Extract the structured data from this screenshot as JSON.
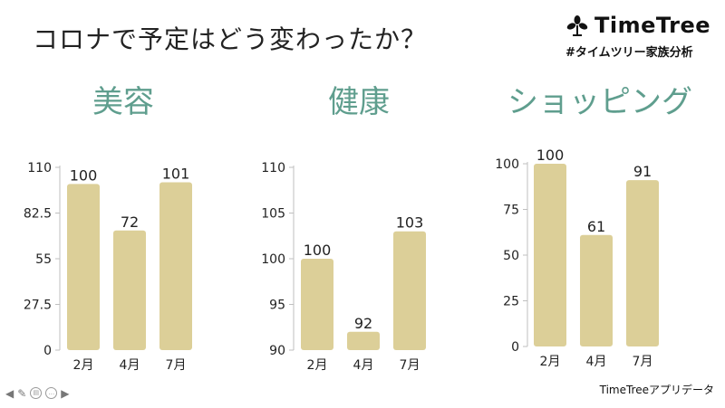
{
  "title": "コロナで予定はどう変わったか？",
  "brand": {
    "name": "TimeTree",
    "tagline": "#タイムツリー家族分析"
  },
  "source": "TimeTreeアプリデータ",
  "nav": {
    "prev_icon": "arrow-left-icon",
    "pen_icon": "pen-icon",
    "view_icon": "slides-icon",
    "more_icon": "more-icon",
    "next_icon": "arrow-right-icon"
  },
  "colors": {
    "bar": "#dccf98",
    "category": "#5f9e8e",
    "axis": "#bfbfbf"
  },
  "chart_data": [
    {
      "type": "bar",
      "title": "美容",
      "categories": [
        "2月",
        "4月",
        "7月"
      ],
      "values": [
        100,
        72,
        101
      ],
      "ylim": [
        0,
        110
      ],
      "yticks": [
        "0",
        "27.5",
        "55",
        "82.5",
        "110"
      ]
    },
    {
      "type": "bar",
      "title": "健康",
      "categories": [
        "2月",
        "4月",
        "7月"
      ],
      "values": [
        100,
        92,
        103
      ],
      "ylim": [
        90,
        110
      ],
      "yticks": [
        "90",
        "95",
        "100",
        "105",
        "110"
      ]
    },
    {
      "type": "bar",
      "title": "ショッピング",
      "categories": [
        "2月",
        "4月",
        "7月"
      ],
      "values": [
        100,
        61,
        91
      ],
      "ylim": [
        0,
        100
      ],
      "yticks": [
        "0",
        "25",
        "50",
        "75",
        "100"
      ]
    }
  ]
}
